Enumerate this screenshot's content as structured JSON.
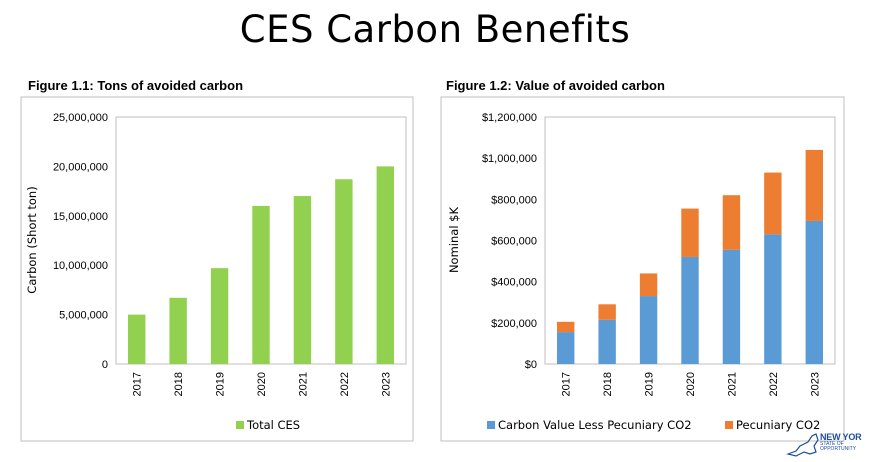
{
  "page": {
    "title": "CES Carbon Benefits",
    "logo": {
      "line1": "NEW YOR",
      "line2": "STATE OF",
      "line3": "OPPORTUNITY"
    }
  },
  "chart_data": [
    {
      "type": "bar",
      "title": "Figure 1.1: Tons of avoided carbon",
      "ylabel": "Carbon (Short ton)",
      "xlabel": "",
      "categories": [
        "2017",
        "2018",
        "2019",
        "2020",
        "2021",
        "2022",
        "2023"
      ],
      "series": [
        {
          "name": "Total CES",
          "values": [
            5000000,
            6700000,
            9700000,
            16000000,
            17000000,
            18700000,
            20000000
          ],
          "color": "#92d050"
        }
      ],
      "ylim": [
        0,
        25000000
      ],
      "yticks": [
        "0",
        "5,000,000",
        "10,000,000",
        "15,000,000",
        "20,000,000",
        "25,000,000"
      ],
      "legend": "bottom",
      "grid": false
    },
    {
      "type": "bar",
      "stacked": true,
      "title": "Figure 1.2: Value of avoided carbon",
      "ylabel": "Nominal $K",
      "xlabel": "",
      "categories": [
        "2017",
        "2018",
        "2019",
        "2020",
        "2021",
        "2022",
        "2023"
      ],
      "series": [
        {
          "name": "Carbon Value Less Pecuniary CO2",
          "values": [
            155000,
            215000,
            330000,
            520000,
            555000,
            630000,
            695000
          ],
          "color": "#5b9bd5"
        },
        {
          "name": "Pecuniary CO2",
          "values": [
            50000,
            75000,
            110000,
            235000,
            265000,
            300000,
            345000
          ],
          "color": "#ed7d31"
        }
      ],
      "ylim": [
        0,
        1200000
      ],
      "yticks": [
        "$0",
        "$200,000",
        "$400,000",
        "$600,000",
        "$800,000",
        "$1,000,000",
        "$1,200,000"
      ],
      "legend": "bottom",
      "grid": false
    }
  ]
}
